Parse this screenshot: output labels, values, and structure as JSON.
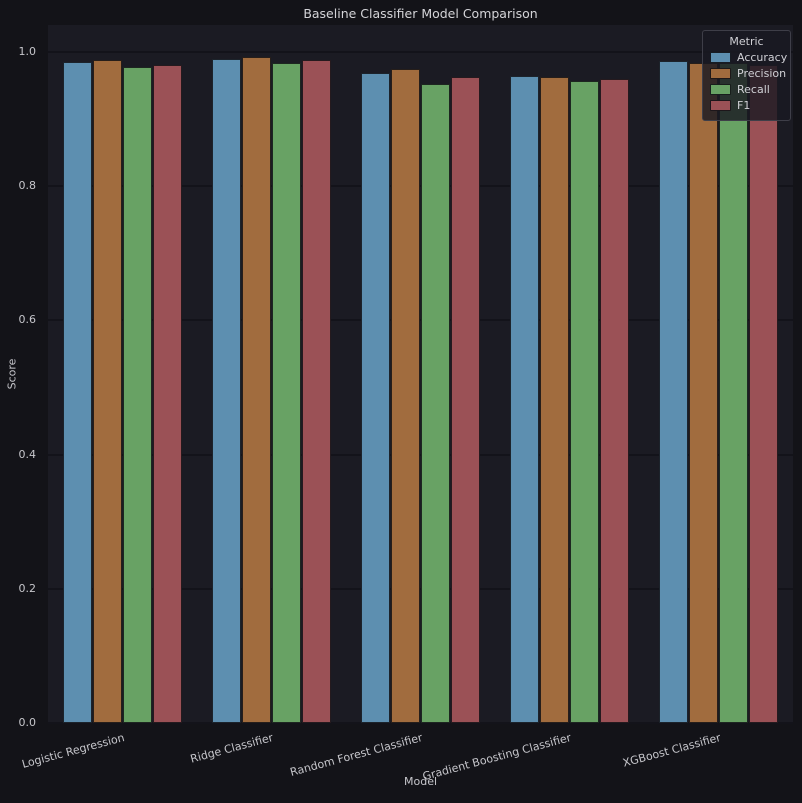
{
  "chart_data": {
    "type": "bar",
    "title": "Baseline Classifier Model Comparison",
    "xlabel": "Model",
    "ylabel": "Score",
    "categories": [
      "Logistic Regression",
      "Ridge Classifier",
      "Random Forest Classifier",
      "Gradient Boosting Classifier",
      "XGBoost Classifier"
    ],
    "series": [
      {
        "name": "Accuracy",
        "color": "#5d8fb0",
        "values": [
          0.985,
          0.989,
          0.969,
          0.964,
          0.986
        ]
      },
      {
        "name": "Precision",
        "color": "#a16c3e",
        "values": [
          0.988,
          0.992,
          0.975,
          0.962,
          0.984
        ]
      },
      {
        "name": "Recall",
        "color": "#68a264",
        "values": [
          0.977,
          0.984,
          0.952,
          0.956,
          0.983
        ]
      },
      {
        "name": "F1",
        "color": "#9b5156",
        "values": [
          0.981,
          0.988,
          0.962,
          0.959,
          0.981
        ]
      }
    ],
    "ylim": [
      0,
      1.04
    ],
    "yticks": [
      "0.0",
      "0.2",
      "0.4",
      "0.6",
      "0.8",
      "1.0"
    ],
    "grid": true,
    "legend": {
      "title": "Metric",
      "position": "upper-right",
      "entries": [
        "Accuracy",
        "Precision",
        "Recall",
        "F1"
      ]
    },
    "colors": {
      "figure_bg": "#131318",
      "axes_bg": "#1b1b23",
      "gridline": "#13131a",
      "text": "#c6c6cb"
    }
  }
}
